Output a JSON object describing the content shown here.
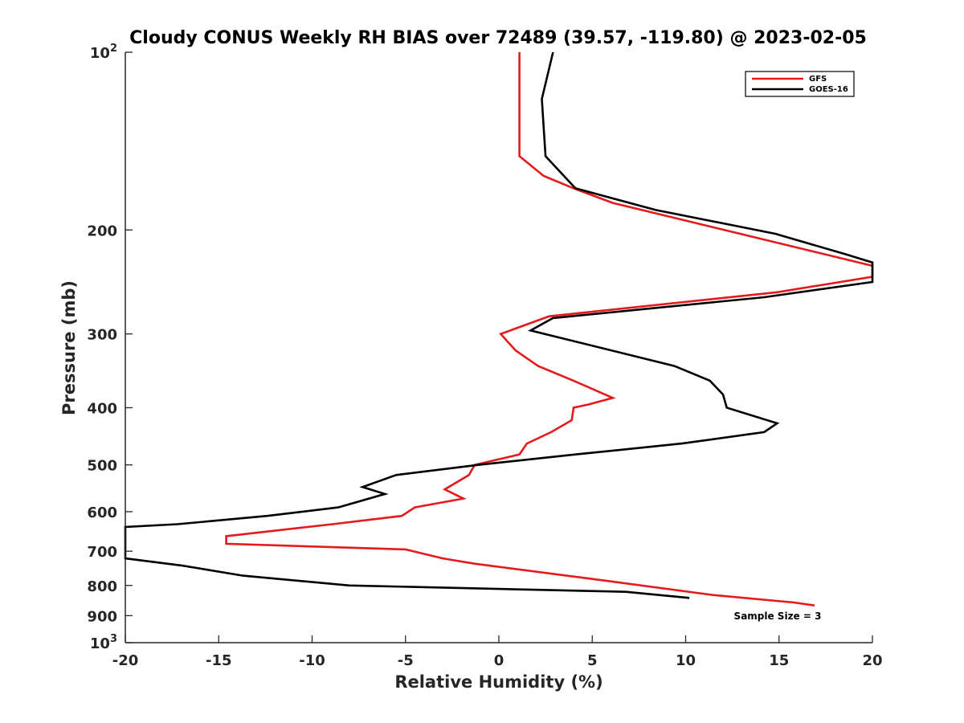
{
  "chart_data": {
    "type": "line",
    "title": "Cloudy CONUS Weekly RH BIAS over 72489 (39.57, -119.80) @ 2023-02-05",
    "xlabel": "Relative Humidity (%)",
    "ylabel": "Pressure (mb)",
    "xlim": [
      -20,
      20
    ],
    "ylim": [
      100,
      1000
    ],
    "y_scale": "log",
    "y_reversed": true,
    "grid": false,
    "legend_position": "top-right",
    "x_ticks": [
      "-20",
      "-15",
      "-10",
      "-5",
      "0",
      "5",
      "10",
      "15",
      "20"
    ],
    "y_ticks": [
      {
        "value": 100,
        "base": "10",
        "exp": "2"
      },
      {
        "value": 200,
        "label": "200"
      },
      {
        "value": 300,
        "label": "300"
      },
      {
        "value": 400,
        "label": "400"
      },
      {
        "value": 500,
        "label": "500"
      },
      {
        "value": 600,
        "label": "600"
      },
      {
        "value": 700,
        "label": "700"
      },
      {
        "value": 800,
        "label": "800"
      },
      {
        "value": 900,
        "label": "900"
      },
      {
        "value": 1000,
        "base": "10",
        "exp": "3"
      }
    ],
    "series": [
      {
        "name": "GFS",
        "color": "#e41a1c",
        "points": [
          [
            1.1,
            100
          ],
          [
            1.1,
            150
          ],
          [
            2.4,
            162
          ],
          [
            4.0,
            170
          ],
          [
            6.1,
            180
          ],
          [
            20.0,
            230
          ],
          [
            20.0,
            240
          ],
          [
            14.9,
            255
          ],
          [
            2.7,
            280
          ],
          [
            0.1,
            300
          ],
          [
            0.9,
            320
          ],
          [
            2.1,
            340
          ],
          [
            4.0,
            360
          ],
          [
            6.1,
            385
          ],
          [
            4.8,
            395
          ],
          [
            4.0,
            400
          ],
          [
            3.9,
            420
          ],
          [
            2.8,
            440
          ],
          [
            1.5,
            460
          ],
          [
            1.1,
            480
          ],
          [
            -1.3,
            500
          ],
          [
            -1.6,
            520
          ],
          [
            -2.9,
            550
          ],
          [
            -1.9,
            570
          ],
          [
            -4.5,
            590
          ],
          [
            -5.2,
            610
          ],
          [
            -8.9,
            630
          ],
          [
            -14.6,
            660
          ],
          [
            -14.6,
            680
          ],
          [
            -5.0,
            695
          ],
          [
            -3.0,
            720
          ],
          [
            -1.3,
            735
          ],
          [
            5.0,
            780
          ],
          [
            11.4,
            830
          ],
          [
            15.8,
            855
          ],
          [
            16.9,
            865
          ]
        ]
      },
      {
        "name": "GOES-16",
        "color": "#000000",
        "points": [
          [
            2.9,
            100
          ],
          [
            2.3,
            120
          ],
          [
            2.5,
            150
          ],
          [
            4.1,
            170
          ],
          [
            8.4,
            185
          ],
          [
            14.8,
            203
          ],
          [
            18.6,
            220
          ],
          [
            20.0,
            227
          ],
          [
            20.0,
            245
          ],
          [
            14.2,
            260
          ],
          [
            2.9,
            282
          ],
          [
            1.7,
            296
          ],
          [
            9.4,
            340
          ],
          [
            11.3,
            360
          ],
          [
            12.0,
            380
          ],
          [
            12.2,
            400
          ],
          [
            14.9,
            425
          ],
          [
            14.2,
            440
          ],
          [
            9.8,
            460
          ],
          [
            4.1,
            480
          ],
          [
            -1.1,
            500
          ],
          [
            -5.5,
            520
          ],
          [
            -7.3,
            545
          ],
          [
            -6.1,
            560
          ],
          [
            -8.6,
            590
          ],
          [
            -12.4,
            610
          ],
          [
            -17.2,
            630
          ],
          [
            -20.0,
            637
          ],
          [
            -20.0,
            720
          ],
          [
            -17.0,
            740
          ],
          [
            -13.7,
            770
          ],
          [
            -8.0,
            800
          ],
          [
            6.8,
            820
          ],
          [
            10.2,
            840
          ]
        ]
      }
    ],
    "annotations": [
      {
        "text": "Sample Size = 3"
      }
    ]
  }
}
